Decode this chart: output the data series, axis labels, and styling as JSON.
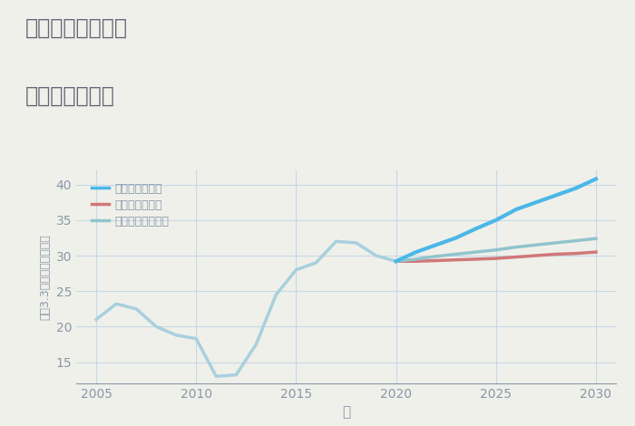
{
  "title_line1": "千葉県柏市高柳の",
  "title_line2": "土地の価格推移",
  "xlabel": "年",
  "ylabel": "坪（3.3㎡）単価（万円）",
  "background_color": "#f0f0ea",
  "plot_bg_color": "#f0f0ea",
  "grid_color": "#c5d8e8",
  "xlim": [
    2004,
    2031
  ],
  "ylim": [
    12,
    42
  ],
  "xticks": [
    2005,
    2010,
    2015,
    2020,
    2025,
    2030
  ],
  "yticks": [
    15,
    20,
    25,
    30,
    35,
    40
  ],
  "historical_years": [
    2005,
    2006,
    2007,
    2008,
    2009,
    2010,
    2011,
    2012,
    2013,
    2014,
    2015,
    2016,
    2017,
    2018,
    2019,
    2020
  ],
  "historical_values": [
    21.0,
    23.2,
    22.5,
    20.0,
    18.8,
    18.3,
    13.0,
    13.2,
    17.5,
    24.5,
    28.0,
    29.0,
    32.0,
    31.8,
    30.0,
    29.2
  ],
  "future_years": [
    2020,
    2021,
    2022,
    2023,
    2024,
    2025,
    2026,
    2027,
    2028,
    2029,
    2030
  ],
  "good_values": [
    29.2,
    30.5,
    31.5,
    32.5,
    33.8,
    35.0,
    36.5,
    37.5,
    38.5,
    39.5,
    40.8
  ],
  "bad_values": [
    29.2,
    29.2,
    29.3,
    29.4,
    29.5,
    29.6,
    29.8,
    30.0,
    30.2,
    30.3,
    30.5
  ],
  "normal_values": [
    29.2,
    29.5,
    29.9,
    30.2,
    30.5,
    30.8,
    31.2,
    31.5,
    31.8,
    32.1,
    32.4
  ],
  "hist_color": "#a8d0de",
  "good_color": "#4ab8e8",
  "bad_color": "#d07878",
  "normal_color": "#90c4cc",
  "legend_labels": [
    "グッドシナリオ",
    "バッドシナリオ",
    "ノーマルシナリオ"
  ],
  "legend_colors": [
    "#4ab8e8",
    "#d07878",
    "#90c4cc"
  ],
  "title_color": "#666677",
  "axis_color": "#8898a8",
  "tick_color": "#8898a8"
}
